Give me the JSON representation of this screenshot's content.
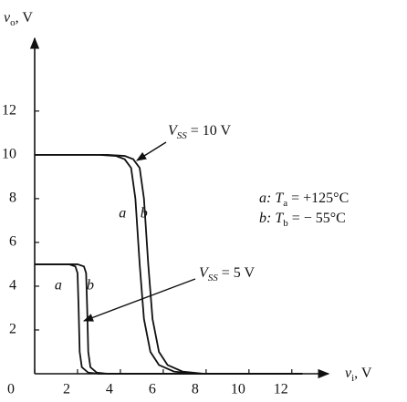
{
  "chart_data": {
    "type": "line",
    "y_label": {
      "var": "v",
      "sub": "o",
      "unit": ", V"
    },
    "x_label": {
      "var": "v",
      "sub": "i",
      "unit": ", V"
    },
    "xlim": [
      0,
      13.5
    ],
    "ylim": [
      0,
      15.2
    ],
    "xticks": [
      0,
      2,
      4,
      6,
      8,
      10,
      12
    ],
    "yticks": [
      2,
      4,
      6,
      8,
      10,
      12
    ],
    "color": "#111",
    "series": [
      {
        "name": "a",
        "x": [
          0,
          3,
          3.8,
          4.2,
          4.5,
          4.7,
          4.9,
          5.1,
          5.4,
          5.8,
          6.5,
          7.5,
          12.5
        ],
        "values": [
          10,
          10,
          9.95,
          9.8,
          9.4,
          8,
          5,
          2.5,
          1,
          0.4,
          0.1,
          0,
          0
        ]
      },
      {
        "name": "b",
        "x": [
          0,
          3.4,
          4.2,
          4.6,
          4.9,
          5.1,
          5.3,
          5.5,
          5.8,
          6.2,
          6.9,
          7.9,
          12.5
        ],
        "values": [
          10,
          10,
          9.95,
          9.8,
          9.4,
          8,
          5,
          2.5,
          1,
          0.4,
          0.1,
          0,
          0
        ]
      },
      {
        "name": "a",
        "x": [
          0,
          1.6,
          1.9,
          2.0,
          2.05,
          2.1,
          2.2,
          2.5,
          3,
          12.5
        ],
        "values": [
          5,
          5,
          4.9,
          4.6,
          3,
          1,
          0.3,
          0.05,
          0,
          0
        ]
      },
      {
        "name": "b",
        "x": [
          0,
          2.0,
          2.3,
          2.4,
          2.45,
          2.5,
          2.6,
          2.9,
          3.4,
          12.5
        ],
        "values": [
          5,
          5,
          4.9,
          4.6,
          3,
          1,
          0.3,
          0.05,
          0,
          0
        ]
      }
    ],
    "annotations": {
      "vss10": {
        "var": "V",
        "sub": "SS",
        "rest": " = 10 V"
      },
      "vss5": {
        "var": "V",
        "sub": "SS",
        "rest": " = 5 V"
      },
      "legend_a": {
        "key": "a",
        "mid": ": T",
        "sub": "a",
        "rest": " = +125°C"
      },
      "legend_b": {
        "key": "b",
        "mid": ": T",
        "sub": "b",
        "rest": " = − 55°C"
      }
    }
  }
}
